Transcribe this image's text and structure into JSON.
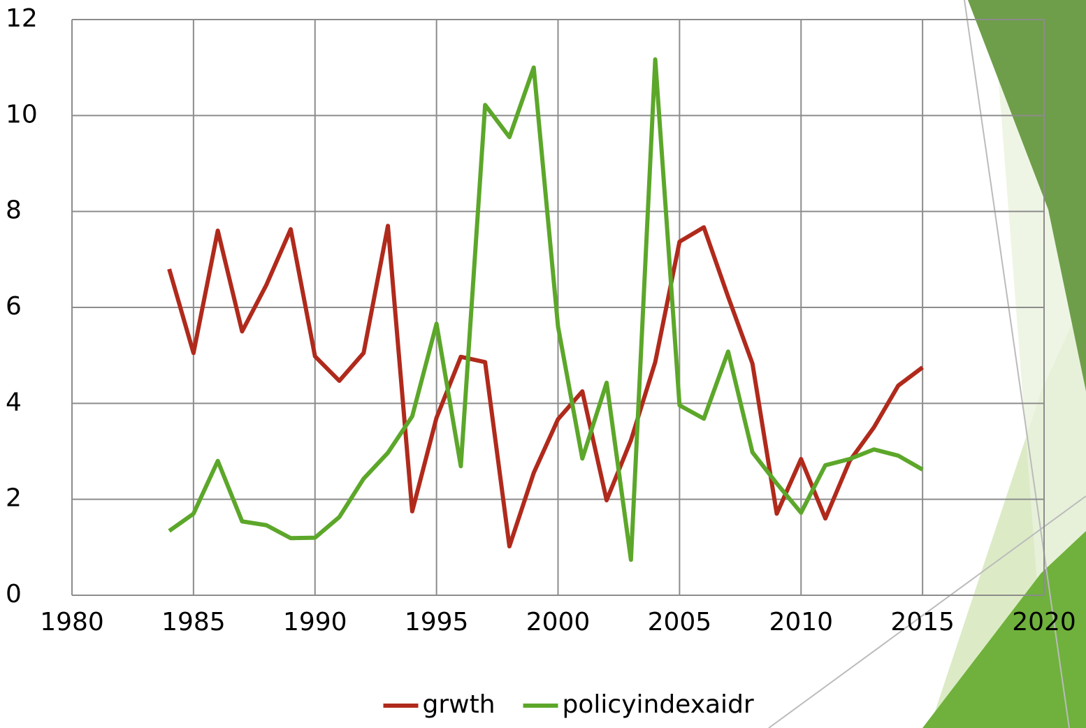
{
  "chart_data": {
    "type": "line",
    "x": [
      1984,
      1985,
      1986,
      1987,
      1988,
      1989,
      1990,
      1991,
      1992,
      1993,
      1994,
      1995,
      1996,
      1997,
      1998,
      1999,
      2000,
      2001,
      2002,
      2003,
      2004,
      2005,
      2006,
      2007,
      2008,
      2009,
      2010,
      2011,
      2012,
      2013,
      2014,
      2015
    ],
    "series": [
      {
        "name": "grwth",
        "color": "#b02a1c",
        "values": [
          6.8,
          5.05,
          7.6,
          5.5,
          6.47,
          7.63,
          4.98,
          4.47,
          5.05,
          7.7,
          1.75,
          3.7,
          4.97,
          4.86,
          1.02,
          2.55,
          3.67,
          4.25,
          1.98,
          3.23,
          4.86,
          7.37,
          7.67,
          6.22,
          4.83,
          1.7,
          2.84,
          1.6,
          2.8,
          3.5,
          4.37,
          4.75
        ]
      },
      {
        "name": "policyindexaidr",
        "color": "#5ca72a",
        "values": [
          1.34,
          1.7,
          2.8,
          1.54,
          1.46,
          1.19,
          1.2,
          1.63,
          2.43,
          2.97,
          3.73,
          5.66,
          2.69,
          10.22,
          9.55,
          11.0,
          5.6,
          2.85,
          4.43,
          0.74,
          11.17,
          3.96,
          3.68,
          5.08,
          2.98,
          2.33,
          1.72,
          2.71,
          2.84,
          3.04,
          2.91,
          2.62
        ]
      }
    ],
    "xlim": [
      1980,
      2020
    ],
    "xticks": [
      1980,
      1985,
      1990,
      1995,
      2000,
      2005,
      2010,
      2015,
      2020
    ],
    "ylim": [
      0,
      12
    ],
    "yticks": [
      0,
      2,
      4,
      6,
      8,
      10,
      12
    ],
    "grid": true,
    "legend": "bottom"
  }
}
